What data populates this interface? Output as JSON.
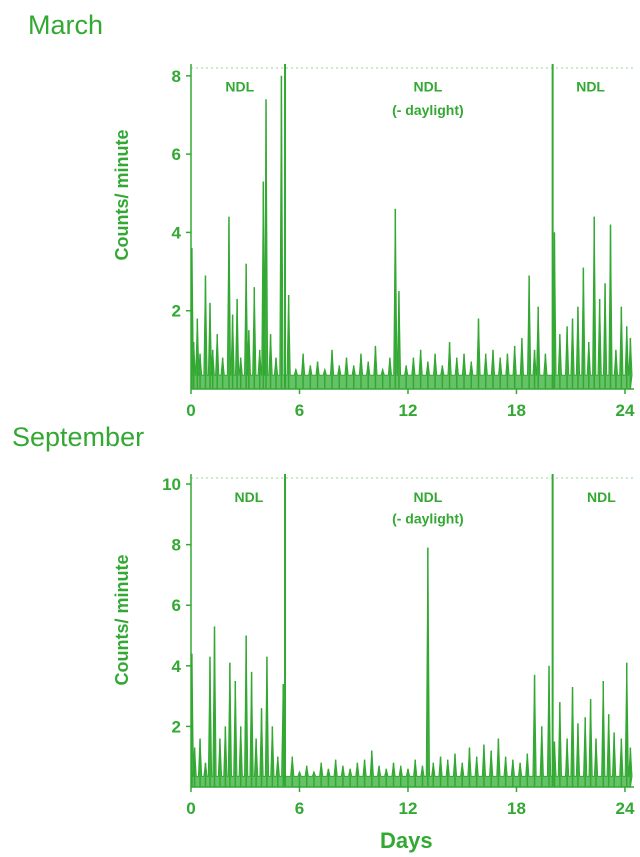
{
  "colors": {
    "accent": "#33a833",
    "fill": "#66c266"
  },
  "xlabel": "Days",
  "chart_data": [
    {
      "type": "area",
      "title": "March",
      "ylabel": "Counts/ minute",
      "xlim": [
        0,
        24.5
      ],
      "ylim": [
        0,
        8.2
      ],
      "xticks": [
        "0",
        "6",
        "12",
        "18",
        "24"
      ],
      "xtick_values": [
        0,
        6,
        12,
        18,
        24
      ],
      "yticks": [
        "2",
        "4",
        "6",
        "8"
      ],
      "ytick_values": [
        2,
        4,
        6,
        8
      ],
      "vlines": [
        5.2,
        20.0
      ],
      "annotations": [
        {
          "text": "NDL",
          "x": 2.7,
          "y": 7.6
        },
        {
          "text": "NDL",
          "x": 13.1,
          "y": 7.6
        },
        {
          "text": "(- daylight)",
          "x": 13.1,
          "y": 7.0
        },
        {
          "text": "NDL",
          "x": 22.1,
          "y": 7.6
        }
      ],
      "series": [
        {
          "x": [
            0.05,
            0.15,
            0.35,
            0.5,
            0.8,
            1.05,
            1.2,
            1.45,
            1.75,
            2.1,
            2.3,
            2.55,
            2.75,
            3.05,
            3.2,
            3.5,
            3.8,
            4.0,
            4.15,
            4.4,
            4.7,
            5.0,
            5.4,
            5.8,
            6.2,
            6.6,
            7.0,
            7.4,
            7.8,
            8.2,
            8.6,
            9.0,
            9.4,
            9.8,
            10.2,
            10.6,
            11.0,
            11.3,
            11.5,
            11.9,
            12.3,
            12.7,
            13.1,
            13.5,
            13.9,
            14.3,
            14.7,
            15.1,
            15.5,
            15.9,
            16.3,
            16.7,
            17.1,
            17.5,
            17.9,
            18.3,
            18.7,
            19.0,
            19.2,
            19.6,
            20.1,
            20.4,
            20.8,
            21.1,
            21.4,
            21.7,
            22.0,
            22.3,
            22.6,
            22.9,
            23.2,
            23.5,
            23.8,
            24.1,
            24.3
          ],
          "y": [
            3.6,
            1.2,
            1.8,
            0.9,
            2.9,
            2.2,
            1.0,
            1.4,
            0.8,
            4.4,
            1.9,
            2.3,
            0.8,
            3.2,
            1.5,
            2.6,
            1.0,
            5.3,
            7.4,
            1.4,
            0.8,
            8.0,
            2.4,
            0.5,
            0.9,
            0.6,
            0.7,
            0.5,
            1.0,
            0.6,
            0.8,
            0.6,
            0.9,
            0.7,
            1.1,
            0.5,
            0.8,
            4.6,
            2.5,
            0.6,
            0.8,
            1.0,
            0.7,
            0.9,
            0.6,
            1.2,
            0.8,
            0.9,
            0.7,
            1.8,
            0.9,
            1.0,
            0.8,
            0.9,
            1.1,
            1.3,
            2.9,
            1.0,
            2.1,
            0.9,
            4.0,
            1.4,
            1.6,
            1.8,
            2.1,
            3.1,
            1.2,
            4.4,
            2.3,
            2.7,
            4.2,
            1.0,
            2.1,
            1.6,
            1.3
          ]
        }
      ]
    },
    {
      "type": "area",
      "title": "September",
      "ylabel": "Counts/ minute",
      "xlim": [
        0,
        24.5
      ],
      "ylim": [
        0,
        10.2
      ],
      "xticks": [
        "0",
        "6",
        "12",
        "18",
        "24"
      ],
      "xtick_values": [
        0,
        6,
        12,
        18,
        24
      ],
      "yticks": [
        "2",
        "4",
        "6",
        "8",
        "10"
      ],
      "ytick_values": [
        2,
        4,
        6,
        8,
        10
      ],
      "vlines": [
        5.2,
        20.0
      ],
      "annotations": [
        {
          "text": "NDL",
          "x": 3.2,
          "y": 9.4
        },
        {
          "text": "NDL",
          "x": 13.1,
          "y": 9.4
        },
        {
          "text": "(- daylight)",
          "x": 13.1,
          "y": 8.7
        },
        {
          "text": "NDL",
          "x": 22.7,
          "y": 9.4
        }
      ],
      "series": [
        {
          "x": [
            0.05,
            0.2,
            0.5,
            0.8,
            1.05,
            1.3,
            1.6,
            1.9,
            2.15,
            2.45,
            2.75,
            3.05,
            3.35,
            3.6,
            3.9,
            4.2,
            4.5,
            4.8,
            5.1,
            5.6,
            6.0,
            6.4,
            6.8,
            7.2,
            7.6,
            8.0,
            8.4,
            8.8,
            9.2,
            9.6,
            10.0,
            10.4,
            10.8,
            11.2,
            11.6,
            12.0,
            12.4,
            12.8,
            13.1,
            13.4,
            13.8,
            14.2,
            14.6,
            15.0,
            15.4,
            15.8,
            16.2,
            16.6,
            17.0,
            17.4,
            17.8,
            18.2,
            18.6,
            19.0,
            19.4,
            19.8,
            20.1,
            20.4,
            20.8,
            21.1,
            21.4,
            21.8,
            22.1,
            22.4,
            22.8,
            23.1,
            23.4,
            23.8,
            24.1,
            24.3
          ],
          "y": [
            4.4,
            1.3,
            1.6,
            0.8,
            4.3,
            5.3,
            1.6,
            2.0,
            4.1,
            3.5,
            2.0,
            5.0,
            3.8,
            1.6,
            2.6,
            4.3,
            2.0,
            1.0,
            3.4,
            1.0,
            0.5,
            0.7,
            0.5,
            0.8,
            0.6,
            0.9,
            0.7,
            0.6,
            0.8,
            0.9,
            1.2,
            0.7,
            0.6,
            0.8,
            0.7,
            0.6,
            0.9,
            0.7,
            7.9,
            0.8,
            1.0,
            0.9,
            1.1,
            0.8,
            1.3,
            1.0,
            1.4,
            1.2,
            1.6,
            1.0,
            0.9,
            0.8,
            1.1,
            3.7,
            2.0,
            4.0,
            1.5,
            2.8,
            1.6,
            3.3,
            2.1,
            2.3,
            2.9,
            1.6,
            3.5,
            2.4,
            1.8,
            1.6,
            4.1,
            1.3
          ]
        }
      ]
    }
  ]
}
